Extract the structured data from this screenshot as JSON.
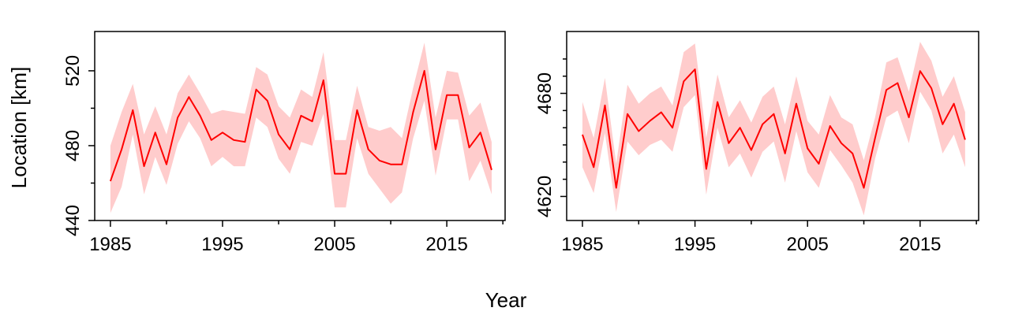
{
  "colors": {
    "line": "#ff0000",
    "band": "#ffcccc",
    "axis": "#000000"
  },
  "shared_xlabel": "Year",
  "chart_data": [
    {
      "type": "line",
      "ylabel": "Location [km]",
      "xlabel": "",
      "xlim": [
        1983.6,
        2020.2
      ],
      "ylim": [
        440,
        541
      ],
      "x_ticks": [
        1985,
        1995,
        2005,
        2015
      ],
      "x_minor_ticks": [
        1990,
        2000,
        2010,
        2020
      ],
      "y_ticks": [
        440,
        480,
        520
      ],
      "y_minor_ticks": [
        460,
        500
      ],
      "grid": false,
      "x": [
        1985,
        1986,
        1987,
        1988,
        1989,
        1990,
        1991,
        1992,
        1993,
        1994,
        1995,
        1996,
        1997,
        1998,
        1999,
        2000,
        2001,
        2002,
        2003,
        2004,
        2005,
        2006,
        2007,
        2008,
        2009,
        2010,
        2011,
        2012,
        2013,
        2014,
        2015,
        2016,
        2017,
        2018,
        2019
      ],
      "series": [
        {
          "values": [
            461,
            478,
            499,
            469,
            487,
            470,
            495,
            506,
            496,
            483,
            487,
            483,
            482,
            510,
            504,
            486,
            478,
            496,
            493,
            515,
            465,
            465,
            499,
            478,
            472,
            470,
            470,
            498,
            520,
            478,
            507,
            507,
            479,
            487,
            467
          ],
          "lower": [
            444,
            458,
            486,
            454,
            474,
            459,
            481,
            493,
            484,
            469,
            474,
            469,
            469,
            495,
            490,
            473,
            465,
            482,
            480,
            497,
            447,
            447,
            484,
            465,
            457,
            449,
            455,
            484,
            504,
            464,
            494,
            494,
            461,
            472,
            454
          ],
          "upper": [
            480,
            498,
            513,
            486,
            501,
            486,
            508,
            518,
            508,
            497,
            499,
            498,
            497,
            522,
            518,
            501,
            495,
            510,
            506,
            530,
            483,
            483,
            512,
            490,
            488,
            490,
            484,
            511,
            535,
            495,
            520,
            519,
            496,
            503,
            482
          ]
        }
      ]
    },
    {
      "type": "line",
      "ylabel": "",
      "xlabel": "",
      "xlim": [
        1983.6,
        2020.2
      ],
      "ylim": [
        4606,
        4716
      ],
      "x_ticks": [
        1985,
        1995,
        2005,
        2015
      ],
      "x_minor_ticks": [
        1990,
        2000,
        2010,
        2020
      ],
      "y_ticks": [
        4620,
        4680
      ],
      "y_minor_ticks": [
        4630,
        4640,
        4650,
        4660,
        4670,
        4690,
        4700
      ],
      "grid": false,
      "x": [
        1985,
        1986,
        1987,
        1988,
        1989,
        1990,
        1991,
        1992,
        1993,
        1994,
        1995,
        1996,
        1997,
        1998,
        1999,
        2000,
        2001,
        2002,
        2003,
        2004,
        2005,
        2006,
        2007,
        2008,
        2009,
        2010,
        2011,
        2012,
        2013,
        2014,
        2015,
        2016,
        2017,
        2018,
        2019
      ],
      "series": [
        {
          "values": [
            4656,
            4637,
            4673,
            4625,
            4668,
            4658,
            4664,
            4669,
            4660,
            4687,
            4694,
            4636,
            4675,
            4651,
            4660,
            4647,
            4662,
            4668,
            4645,
            4674,
            4648,
            4639,
            4661,
            4651,
            4645,
            4625,
            4654,
            4682,
            4686,
            4666,
            4693,
            4683,
            4662,
            4674,
            4653
          ],
          "lower": [
            4637,
            4622,
            4657,
            4611,
            4652,
            4644,
            4650,
            4653,
            4646,
            4672,
            4679,
            4621,
            4660,
            4637,
            4645,
            4631,
            4646,
            4652,
            4628,
            4658,
            4634,
            4625,
            4647,
            4638,
            4628,
            4609,
            4642,
            4666,
            4670,
            4651,
            4681,
            4670,
            4645,
            4656,
            4637
          ],
          "upper": [
            4675,
            4654,
            4689,
            4639,
            4685,
            4674,
            4680,
            4684,
            4673,
            4704,
            4709,
            4654,
            4691,
            4666,
            4676,
            4663,
            4678,
            4684,
            4662,
            4690,
            4664,
            4656,
            4679,
            4666,
            4662,
            4641,
            4666,
            4698,
            4701,
            4681,
            4710,
            4699,
            4678,
            4690,
            4669
          ]
        }
      ]
    }
  ]
}
